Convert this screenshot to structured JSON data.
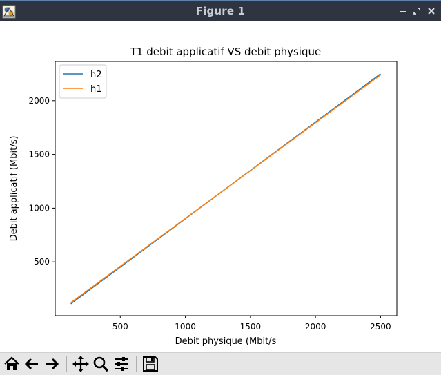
{
  "window": {
    "title": "Figure 1",
    "title_bar_color": "#2e3440",
    "title_text_color": "#c9ced6",
    "controls": [
      "minimize-icon",
      "maximize-icon",
      "close-icon"
    ]
  },
  "toolbar": {
    "buttons": [
      "home-icon",
      "back-icon",
      "forward-icon",
      "pan-icon",
      "zoom-icon",
      "subplots-icon",
      "save-icon"
    ]
  },
  "chart_data": {
    "type": "line",
    "title": "T1 debit applicatif VS debit physique",
    "xlabel": "Debit physique (Mbit/s",
    "ylabel": "Debit applicatif (Mbit/s)",
    "xlim": [
      0,
      2625
    ],
    "ylim": [
      0,
      2365
    ],
    "xticks": [
      500,
      1000,
      1500,
      2000,
      2500
    ],
    "yticks": [
      500,
      1000,
      1500,
      2000
    ],
    "xtick_labels": [
      "500",
      "1000",
      "1500",
      "2000",
      "2500"
    ],
    "ytick_labels": [
      "500",
      "1000",
      "1500",
      "2000"
    ],
    "legend_position": "upper-left",
    "grid": false,
    "series": [
      {
        "name": "h2",
        "color": "#1f77b4",
        "x": [
          120,
          2500
        ],
        "y": [
          110,
          2250
        ]
      },
      {
        "name": "h1",
        "color": "#ff7f0e",
        "x": [
          120,
          2500
        ],
        "y": [
          120,
          2240
        ]
      }
    ]
  }
}
